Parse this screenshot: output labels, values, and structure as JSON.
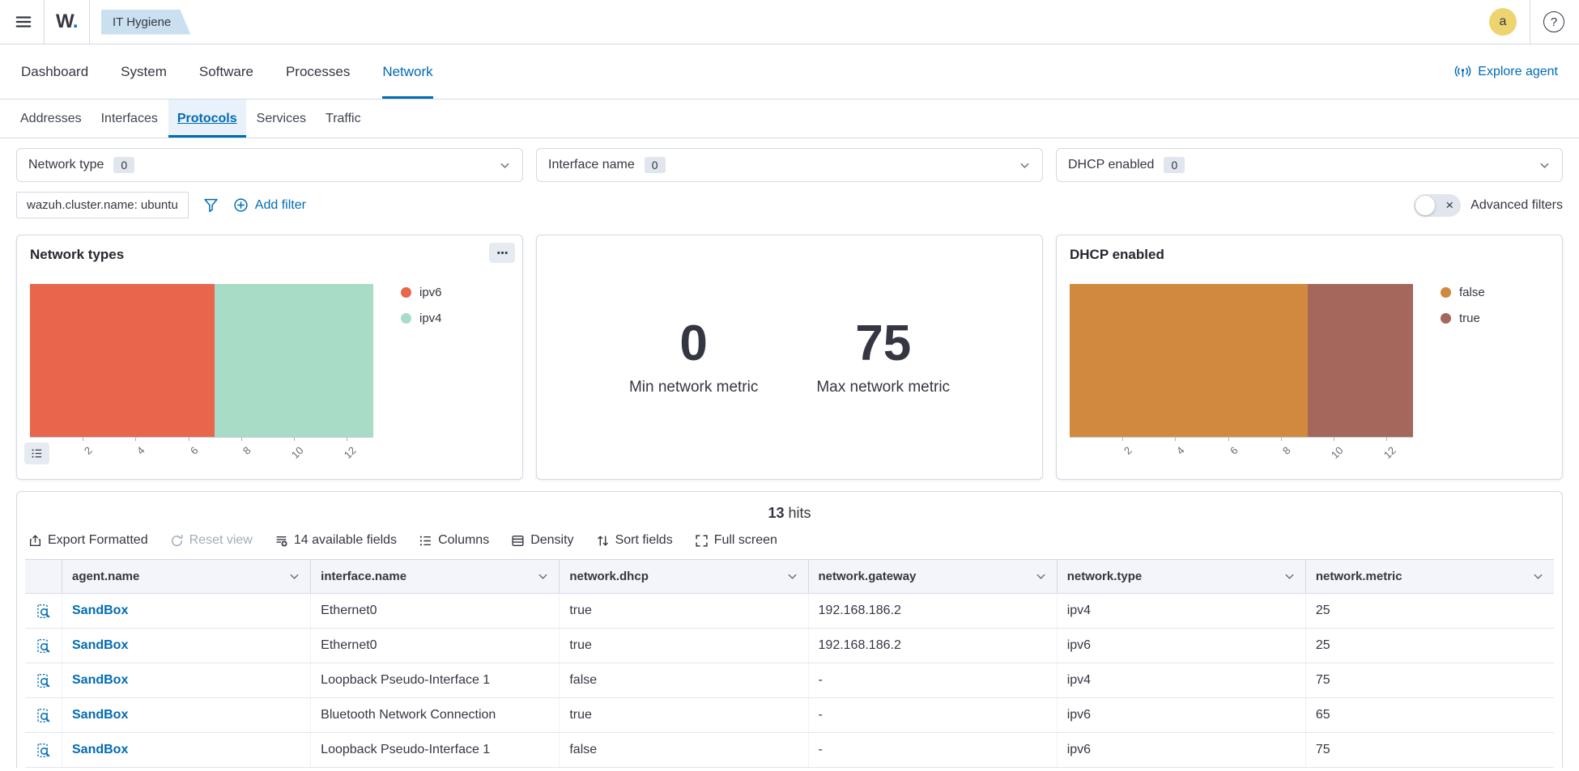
{
  "colors": {
    "primary": "#006bb4",
    "text": "#343741",
    "border": "#d3dae6",
    "breadcrumb_bg": "#cadfef",
    "avatar_bg": "#eed471",
    "ipv6": "#e7664c",
    "ipv4": "#a8dcc6",
    "dhcp_false": "#d1893e",
    "dhcp_true": "#a5675c"
  },
  "topbar": {
    "logo": "W",
    "logo_dot": ".",
    "breadcrumb": "IT Hygiene",
    "avatar_initial": "a",
    "help_glyph": "?"
  },
  "nav": {
    "tabs": [
      {
        "label": "Dashboard",
        "active": false
      },
      {
        "label": "System",
        "active": false
      },
      {
        "label": "Software",
        "active": false
      },
      {
        "label": "Processes",
        "active": false
      },
      {
        "label": "Network",
        "active": true
      }
    ],
    "explore_agent_label": "Explore agent"
  },
  "subnav": {
    "tabs": [
      {
        "label": "Addresses",
        "active": false
      },
      {
        "label": "Interfaces",
        "active": false
      },
      {
        "label": "Protocols",
        "active": true
      },
      {
        "label": "Services",
        "active": false
      },
      {
        "label": "Traffic",
        "active": false
      }
    ]
  },
  "filters": {
    "selects": [
      {
        "label": "Network type",
        "count": "0"
      },
      {
        "label": "Interface name",
        "count": "0"
      },
      {
        "label": "DHCP enabled",
        "count": "0"
      }
    ],
    "pill": "wazuh.cluster.name: ubuntu",
    "add_filter_label": "Add filter",
    "advanced_filters_label": "Advanced filters",
    "toggle_close_glyph": "×"
  },
  "chart_data": [
    {
      "type": "bar",
      "orientation": "horizontal-stacked",
      "title": "Network types",
      "xlim": [
        0,
        13
      ],
      "ticks": [
        2,
        4,
        6,
        8,
        10,
        12
      ],
      "legend_position": "right",
      "series": [
        {
          "name": "ipv6",
          "value": 7,
          "color": "#e7664c"
        },
        {
          "name": "ipv4",
          "value": 6,
          "color": "#a8dcc6"
        }
      ]
    },
    {
      "type": "metric",
      "metrics": [
        {
          "value": "0",
          "label": "Min network metric"
        },
        {
          "value": "75",
          "label": "Max network metric"
        }
      ]
    },
    {
      "type": "bar",
      "orientation": "horizontal-stacked",
      "title": "DHCP enabled",
      "xlim": [
        0,
        13
      ],
      "ticks": [
        2,
        4,
        6,
        8,
        10,
        12
      ],
      "legend_position": "right",
      "series": [
        {
          "name": "false",
          "value": 9,
          "color": "#d1893e"
        },
        {
          "name": "true",
          "value": 4,
          "color": "#a5675c"
        }
      ]
    }
  ],
  "results": {
    "hits_count": "13",
    "hits_label": "hits",
    "toolbar": [
      {
        "label": "Export Formatted",
        "icon": "export-icon",
        "disabled": false
      },
      {
        "label": "Reset view",
        "icon": "refresh-icon",
        "disabled": true
      },
      {
        "label": "14 available fields",
        "icon": "fields-icon",
        "disabled": false
      },
      {
        "label": "Columns",
        "icon": "columns-icon",
        "disabled": false
      },
      {
        "label": "Density",
        "icon": "density-icon",
        "disabled": false
      },
      {
        "label": "Sort fields",
        "icon": "sort-icon",
        "disabled": false
      },
      {
        "label": "Full screen",
        "icon": "fullscreen-icon",
        "disabled": false
      }
    ],
    "table": {
      "columns": [
        "agent.name",
        "interface.name",
        "network.dhcp",
        "network.gateway",
        "network.type",
        "network.metric"
      ],
      "rows": [
        {
          "agent.name": "SandBox",
          "interface.name": "Ethernet0",
          "network.dhcp": "true",
          "network.gateway": "192.168.186.2",
          "network.type": "ipv4",
          "network.metric": "25"
        },
        {
          "agent.name": "SandBox",
          "interface.name": "Ethernet0",
          "network.dhcp": "true",
          "network.gateway": "192.168.186.2",
          "network.type": "ipv6",
          "network.metric": "25"
        },
        {
          "agent.name": "SandBox",
          "interface.name": "Loopback Pseudo-Interface 1",
          "network.dhcp": "false",
          "network.gateway": "-",
          "network.type": "ipv4",
          "network.metric": "75"
        },
        {
          "agent.name": "SandBox",
          "interface.name": "Bluetooth Network Connection",
          "network.dhcp": "true",
          "network.gateway": "-",
          "network.type": "ipv6",
          "network.metric": "65"
        },
        {
          "agent.name": "SandBox",
          "interface.name": "Loopback Pseudo-Interface 1",
          "network.dhcp": "false",
          "network.gateway": "-",
          "network.type": "ipv6",
          "network.metric": "75"
        }
      ]
    }
  }
}
